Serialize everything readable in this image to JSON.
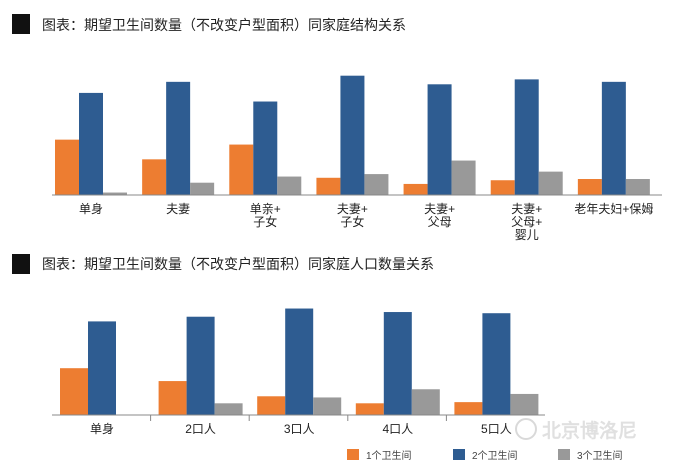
{
  "chart_data": [
    {
      "type": "bar",
      "title": "图表：期望卫生间数量（不改变户型面积）同家庭结构关系",
      "categories": [
        "单身",
        "夫妻",
        "单亲+子女",
        "夫妻+子女",
        "夫妻+父母",
        "夫妻+父母+婴儿",
        "老年夫妇+保姆"
      ],
      "category_lines": [
        [
          "单身"
        ],
        [
          "夫妻"
        ],
        [
          "单亲+",
          "子女"
        ],
        [
          "夫妻+",
          "子女"
        ],
        [
          "夫妻+",
          "父母"
        ],
        [
          "夫妻+",
          "父母+",
          "婴儿"
        ],
        [
          "老年夫妇+保姆"
        ]
      ],
      "series": [
        {
          "values": [
            45,
            29,
            41,
            14,
            9,
            12,
            13
          ]
        },
        {
          "values": [
            83,
            92,
            76,
            97,
            90,
            94,
            92
          ]
        },
        {
          "values": [
            2,
            10,
            15,
            17,
            28,
            19,
            13
          ]
        }
      ],
      "ylim": [
        0,
        100
      ],
      "grid": false
    },
    {
      "type": "bar",
      "title": "图表：期望卫生间数量（不改变户型面积）同家庭人口数量关系",
      "categories": [
        "单身",
        "2口人",
        "3口人",
        "4口人",
        "5口人"
      ],
      "series": [
        {
          "name": "1个卫生间",
          "values": [
            40,
            29,
            16,
            10,
            11
          ]
        },
        {
          "name": "2个卫生间",
          "values": [
            80,
            84,
            91,
            88,
            87
          ]
        },
        {
          "name": "3个卫生间",
          "values": [
            0,
            10,
            15,
            22,
            18
          ]
        }
      ],
      "ylim": [
        0,
        100
      ],
      "grid": false,
      "legend": "bottom-right"
    }
  ],
  "colors": {
    "series1": "#ED7D31",
    "series2": "#2E5C91",
    "series3": "#999999",
    "title_marker": "#111111"
  },
  "watermark": "北京博洛尼"
}
